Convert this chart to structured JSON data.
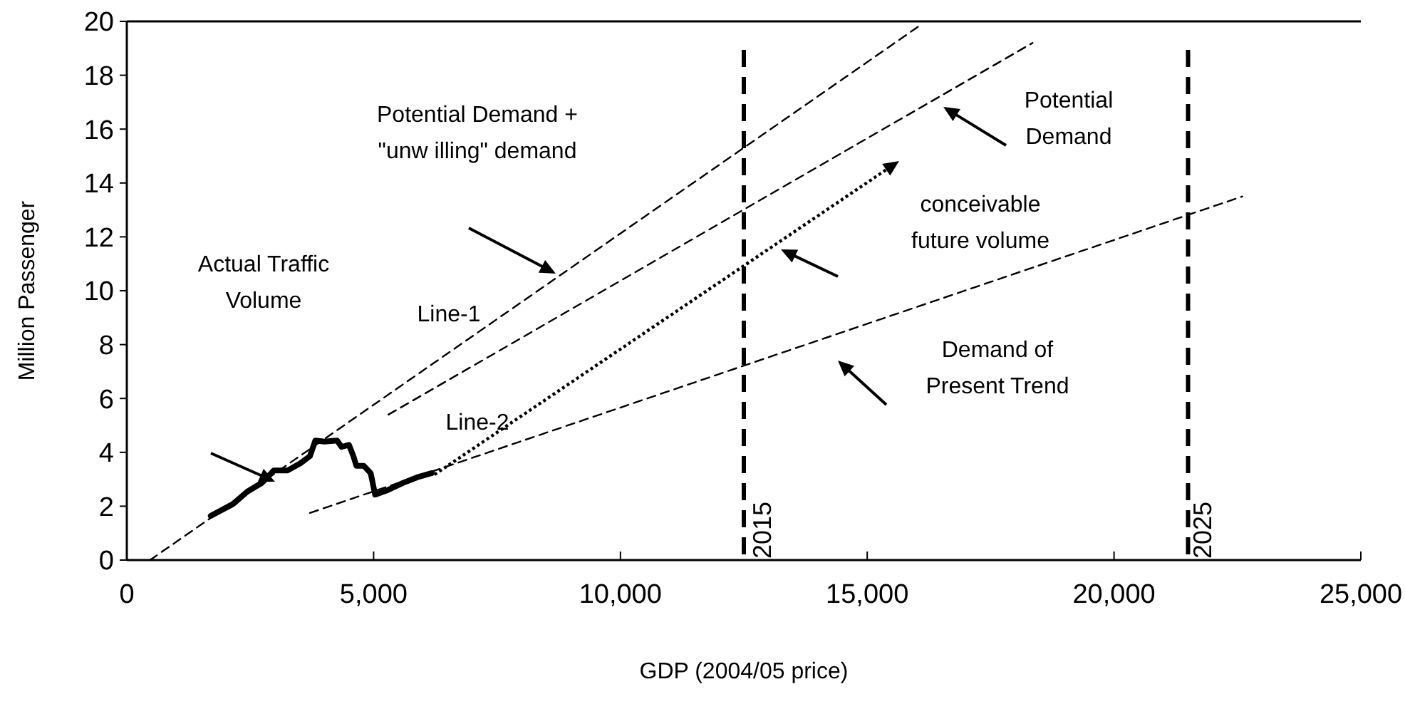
{
  "chart_data": {
    "type": "line",
    "xlabel": "GDP (2004/05 price)",
    "ylabel": "Million Passenger",
    "xlim": [
      0,
      25000
    ],
    "ylim": [
      0,
      20
    ],
    "xticks": [
      0,
      {
        "value": 5000,
        "label": "5,000"
      },
      {
        "value": 10000,
        "label": "10,000"
      },
      {
        "value": 15000,
        "label": "15,000"
      },
      {
        "value": 20000,
        "label": "20,000"
      },
      {
        "value": 25000,
        "label": "25,000"
      }
    ],
    "yticks": [
      0,
      2,
      4,
      6,
      8,
      10,
      12,
      14,
      16,
      18,
      20
    ],
    "grid": false,
    "marker": "none",
    "series": [
      {
        "color": "#000000",
        "line_style": "solid",
        "x": [
          1700,
          2150,
          2440,
          2740,
          2980,
          3260,
          3520,
          3710,
          3820,
          4000,
          4260,
          4350,
          4500,
          4590,
          4650,
          4800,
          4940,
          5030,
          5290,
          5590,
          5880,
          6180
        ],
        "values": [
          1.64,
          2.08,
          2.54,
          2.87,
          3.33,
          3.33,
          3.6,
          3.86,
          4.44,
          4.4,
          4.44,
          4.2,
          4.28,
          3.86,
          3.5,
          3.5,
          3.23,
          2.43,
          2.6,
          2.86,
          3.07,
          3.23
        ]
      },
      {
        "color": "#000000",
        "line_style": "dashed",
        "x": [
          470,
          16030
        ],
        "values": [
          0,
          19.8
        ]
      },
      {
        "color": "#000000",
        "line_style": "dashed",
        "x": [
          5300,
          18350
        ],
        "values": [
          5.4,
          19.2
        ]
      },
      {
        "color": "#000000",
        "line_style": "dashed",
        "x": [
          3710,
          22600
        ],
        "values": [
          1.75,
          13.5
        ]
      }
    ],
    "ref_lines": [
      {
        "axis": "x",
        "value": 12500,
        "color": "#000000",
        "line_style": "dashed"
      },
      {
        "axis": "x",
        "value": 21500,
        "color": "#000000",
        "line_style": "dashed"
      }
    ],
    "annotations": [
      "Potential Demand +\n\"unw illing\" demand",
      "Line-1",
      "Potential\nDemand",
      "conceivable\nfuture volume",
      "Demand of\nPresent Trend",
      "Actual Traffic\nVolume",
      "Line-2",
      "2015",
      "2025"
    ]
  }
}
